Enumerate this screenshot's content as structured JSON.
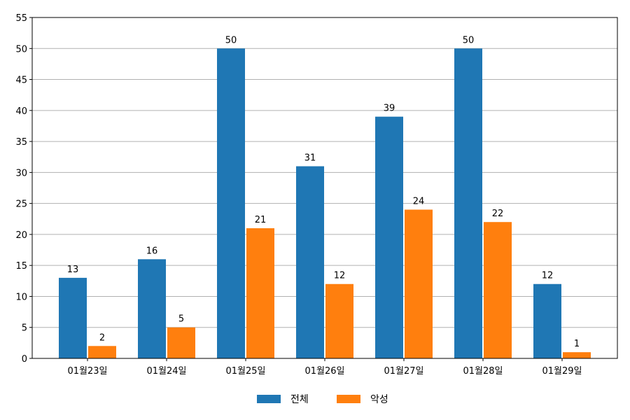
{
  "chart_data": {
    "type": "bar",
    "title": "",
    "xlabel": "",
    "ylabel": "",
    "categories": [
      "01월23일",
      "01월24일",
      "01월25일",
      "01월26일",
      "01월27일",
      "01월28일",
      "01월29일"
    ],
    "series": [
      {
        "name": "전체",
        "color": "#1f77b4",
        "values": [
          13,
          16,
          50,
          31,
          39,
          50,
          12
        ]
      },
      {
        "name": "악성",
        "color": "#ff7f0e",
        "values": [
          2,
          5,
          21,
          12,
          24,
          22,
          1
        ]
      }
    ],
    "ylim": [
      0,
      55
    ],
    "yticks": [
      0,
      5,
      10,
      15,
      20,
      25,
      30,
      35,
      40,
      45,
      50,
      55
    ],
    "grid": "horizontal",
    "legend_position": "bottom-center",
    "data_labels": true
  }
}
